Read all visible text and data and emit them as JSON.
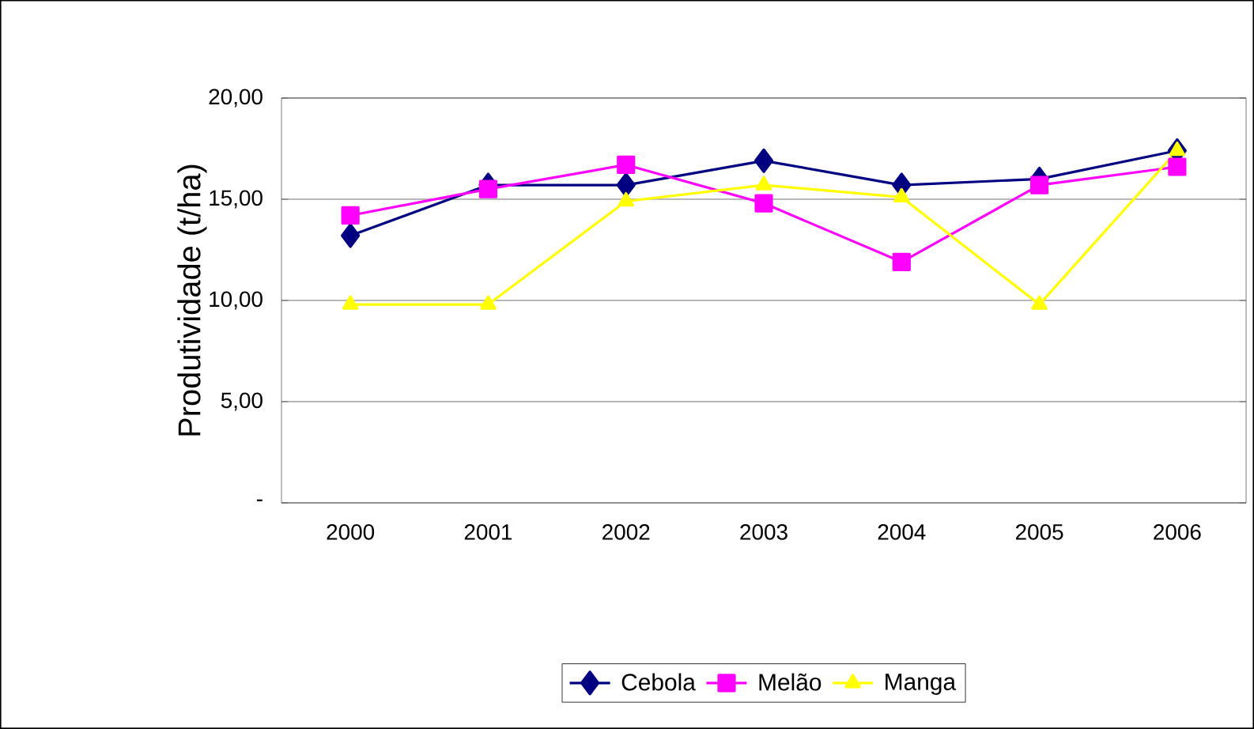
{
  "chart_data": {
    "type": "line",
    "ylabel": "Produtividade (t/ha)",
    "categories": [
      "2000",
      "2001",
      "2002",
      "2003",
      "2004",
      "2005",
      "2006"
    ],
    "series": [
      {
        "name": "Cebola",
        "color": "#000080",
        "marker": "diamond",
        "values": [
          13.2,
          15.7,
          15.7,
          16.9,
          15.7,
          16.0,
          17.4
        ]
      },
      {
        "name": "Melão",
        "color": "#ff00ff",
        "marker": "square",
        "values": [
          14.2,
          15.5,
          16.7,
          14.8,
          11.9,
          15.7,
          16.6
        ]
      },
      {
        "name": "Manga",
        "color": "#ffff00",
        "marker": "triangle",
        "values": [
          9.8,
          9.8,
          14.9,
          15.7,
          15.1,
          9.8,
          17.4
        ]
      }
    ],
    "ylim": [
      0,
      20
    ],
    "yticks": [
      {
        "value": 0,
        "label": "-"
      },
      {
        "value": 5,
        "label": "5,00"
      },
      {
        "value": 10,
        "label": "10,00"
      },
      {
        "value": 15,
        "label": "15,00"
      },
      {
        "value": 20,
        "label": "20,00"
      }
    ],
    "grid": "y",
    "legend": "bottom"
  }
}
